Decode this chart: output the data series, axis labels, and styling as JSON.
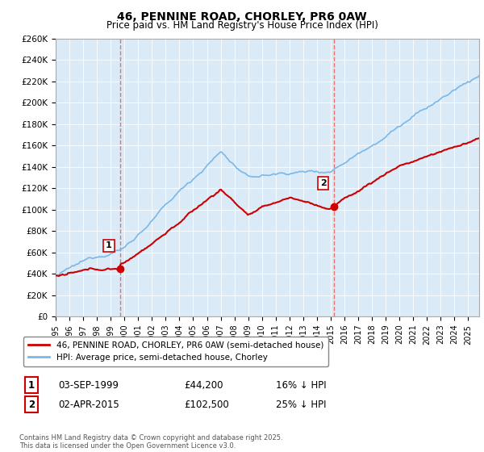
{
  "title": "46, PENNINE ROAD, CHORLEY, PR6 0AW",
  "subtitle": "Price paid vs. HM Land Registry's House Price Index (HPI)",
  "title_fontsize": 10,
  "subtitle_fontsize": 8.5,
  "hpi_color": "#7ab8e8",
  "price_color": "#cc0000",
  "marker_color": "#cc0000",
  "dashed_color": "#e87070",
  "background_color": "#daeaf7",
  "ylim": [
    0,
    260000
  ],
  "yticks": [
    0,
    20000,
    40000,
    60000,
    80000,
    100000,
    120000,
    140000,
    160000,
    180000,
    200000,
    220000,
    240000,
    260000
  ],
  "ytick_labels": [
    "£0",
    "£20K",
    "£40K",
    "£60K",
    "£80K",
    "£100K",
    "£120K",
    "£140K",
    "£160K",
    "£180K",
    "£200K",
    "£220K",
    "£240K",
    "£260K"
  ],
  "xmin": 1995,
  "xmax": 2025.8,
  "sale1_x": 1999.67,
  "sale1_y": 44200,
  "sale1_label": "1",
  "sale1_date": "03-SEP-1999",
  "sale1_price": "£44,200",
  "sale1_hpi": "16% ↓ HPI",
  "sale2_x": 2015.25,
  "sale2_y": 102500,
  "sale2_label": "2",
  "sale2_date": "02-APR-2015",
  "sale2_price": "£102,500",
  "sale2_hpi": "25% ↓ HPI",
  "legend_line1": "46, PENNINE ROAD, CHORLEY, PR6 0AW (semi-detached house)",
  "legend_line2": "HPI: Average price, semi-detached house, Chorley",
  "footnote": "Contains HM Land Registry data © Crown copyright and database right 2025.\nThis data is licensed under the Open Government Licence v3.0."
}
